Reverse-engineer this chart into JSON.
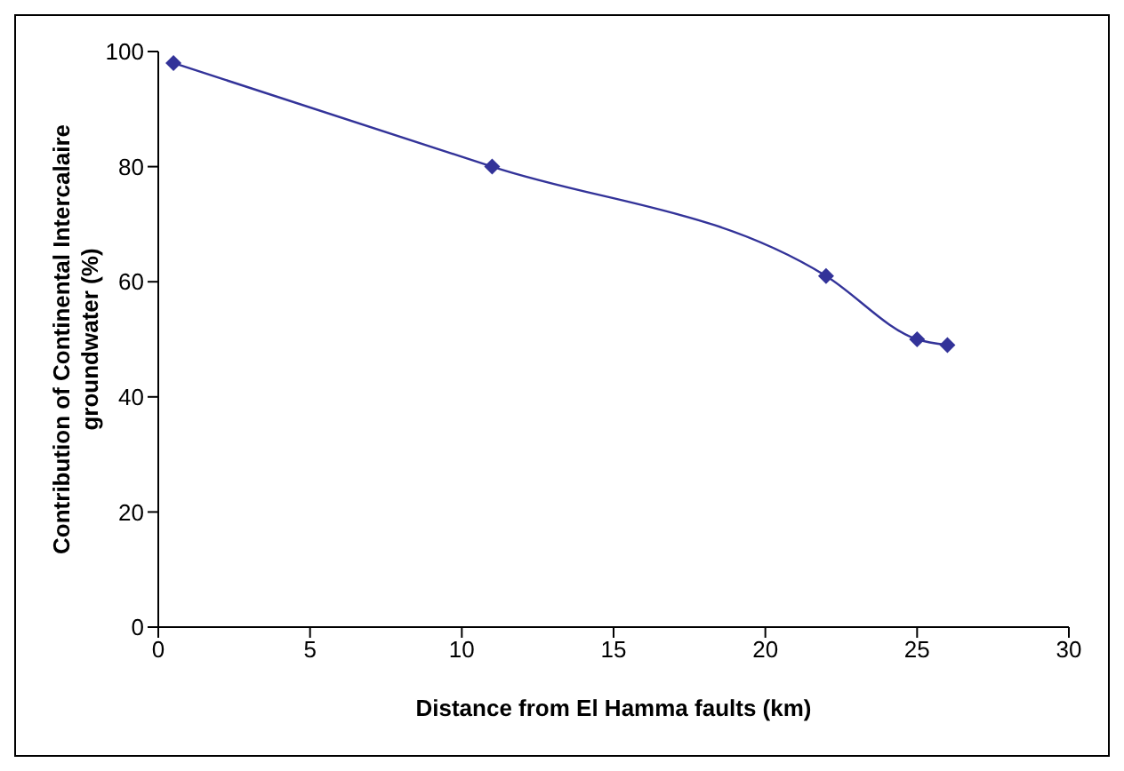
{
  "chart_data": {
    "type": "line",
    "xlabel": "Distance from El Hamma faults (km)",
    "ylabel": "Contribution of Continental Intercalaire groundwater (%)",
    "x": [
      0.5,
      11,
      22,
      25,
      26
    ],
    "series": [
      {
        "color": "#333399",
        "values": [
          98,
          80,
          61,
          50,
          49
        ]
      }
    ],
    "xlim": [
      0,
      30
    ],
    "xticks": [
      0,
      5,
      10,
      15,
      20,
      25,
      30
    ],
    "ylim": [
      0,
      100
    ],
    "yticks": [
      0,
      20,
      40,
      60,
      80,
      100
    ],
    "grid": false,
    "legend": false,
    "marker": "diamond",
    "line_style": "solid"
  }
}
